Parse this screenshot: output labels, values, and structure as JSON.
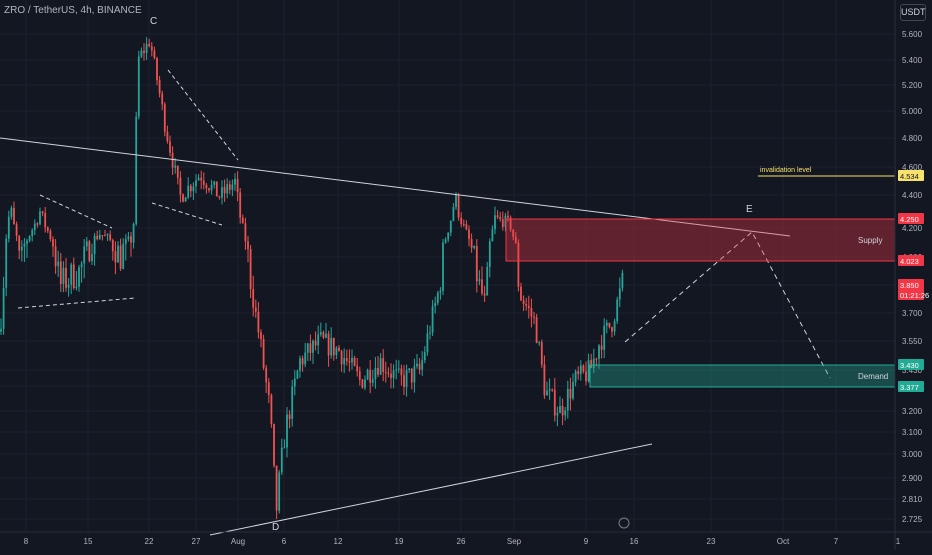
{
  "header": {
    "title": "ZRO / TetherUS, 4h, BINANCE",
    "currency": "USDT"
  },
  "chart_data": {
    "type": "candlestick",
    "symbol": "ZRO / TetherUS",
    "interval": "4h",
    "exchange": "BINANCE",
    "y_ticks": [
      "5.600",
      "5.400",
      "5.200",
      "5.000",
      "4.800",
      "4.600",
      "4.400",
      "4.200",
      "4.000",
      "3.850",
      "3.700",
      "3.550",
      "3.430",
      "3.320",
      "3.200",
      "3.100",
      "3.000",
      "2.900",
      "2.810",
      "2.725"
    ],
    "x_ticks": [
      "8",
      "15",
      "22",
      "27",
      "Aug",
      "6",
      "12",
      "19",
      "26",
      "Sep",
      "9",
      "16",
      "23",
      "Oct",
      "7",
      "1"
    ],
    "price_badges": [
      {
        "label": "4.534",
        "color": "#f7e26b",
        "text_color": "#131722"
      },
      {
        "label": "4.250",
        "color": "#f23645",
        "text_color": "#ffffff"
      },
      {
        "label": "4.023",
        "color": "#f23645",
        "text_color": "#ffffff"
      },
      {
        "label": "3.850",
        "color": "#f23645",
        "text_color": "#ffffff"
      },
      {
        "label": "01:21:26",
        "color": "#f23645",
        "text_color": "#ffffff"
      },
      {
        "label": "3.430",
        "color": "#22ab94",
        "text_color": "#ffffff"
      },
      {
        "label": "3.377",
        "color": "#22ab94",
        "text_color": "#ffffff"
      }
    ],
    "zones": [
      {
        "label": "Supply",
        "top": 4.25,
        "bottom": 4.023,
        "color": "#f23645"
      },
      {
        "label": "Demand",
        "top": 3.43,
        "bottom": 3.377,
        "color": "#22ab94"
      }
    ],
    "annotations": {
      "invalidation_label": "invalidation level",
      "invalidation_price": 4.534,
      "wave_labels": [
        "C",
        "D",
        "E"
      ]
    },
    "colors": {
      "up": "#26a69a",
      "down": "#ef5350",
      "bg": "#131722",
      "grid": "#1e222d"
    }
  }
}
